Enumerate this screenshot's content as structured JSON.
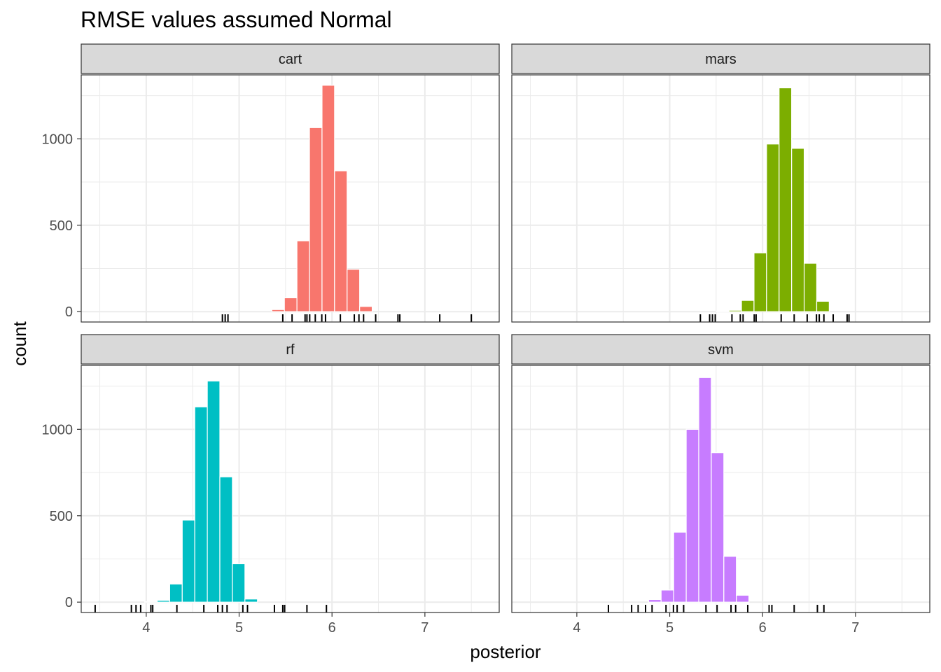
{
  "chart_data": {
    "type": "bar",
    "title": "RMSE values assumed Normal",
    "xlabel": "posterior",
    "ylabel": "count",
    "xlim": [
      3.3,
      7.8
    ],
    "ylim": [
      -60,
      1370
    ],
    "x_ticks": [
      4,
      5,
      6,
      7
    ],
    "y_ticks": [
      0,
      500,
      1000
    ],
    "bin_width": 0.135,
    "grid": true,
    "legend": "none",
    "panels": [
      {
        "name": "cart",
        "color": "#F8766D",
        "bins": [
          {
            "x": 5.42,
            "count": 12
          },
          {
            "x": 5.555,
            "count": 80
          },
          {
            "x": 5.69,
            "count": 410
          },
          {
            "x": 5.825,
            "count": 1065
          },
          {
            "x": 5.96,
            "count": 1310
          },
          {
            "x": 6.095,
            "count": 815
          },
          {
            "x": 6.23,
            "count": 245
          },
          {
            "x": 6.365,
            "count": 30
          }
        ],
        "rug": [
          4.82,
          4.85,
          4.88,
          5.47,
          5.57,
          5.71,
          5.73,
          5.76,
          5.82,
          5.89,
          5.93,
          6.09,
          6.24,
          6.29,
          6.34,
          6.47,
          6.71,
          6.73,
          7.16,
          7.5
        ]
      },
      {
        "name": "mars",
        "color": "#7CAE00",
        "bins": [
          {
            "x": 5.57,
            "count": 2
          },
          {
            "x": 5.705,
            "count": 8
          },
          {
            "x": 5.84,
            "count": 65
          },
          {
            "x": 5.975,
            "count": 340
          },
          {
            "x": 6.11,
            "count": 970
          },
          {
            "x": 6.245,
            "count": 1295
          },
          {
            "x": 6.38,
            "count": 945
          },
          {
            "x": 6.515,
            "count": 280
          },
          {
            "x": 6.65,
            "count": 60
          }
        ],
        "rug": [
          5.33,
          5.43,
          5.46,
          5.49,
          5.67,
          5.76,
          5.79,
          5.91,
          5.93,
          6.2,
          6.34,
          6.48,
          6.58,
          6.61,
          6.66,
          6.76,
          6.91,
          6.93
        ]
      },
      {
        "name": "rf",
        "color": "#00BFC4",
        "bins": [
          {
            "x": 4.05,
            "count": 2
          },
          {
            "x": 4.185,
            "count": 10
          },
          {
            "x": 4.32,
            "count": 105
          },
          {
            "x": 4.455,
            "count": 475
          },
          {
            "x": 4.59,
            "count": 1130
          },
          {
            "x": 4.725,
            "count": 1280
          },
          {
            "x": 4.86,
            "count": 725
          },
          {
            "x": 4.995,
            "count": 222
          },
          {
            "x": 5.13,
            "count": 18
          }
        ],
        "rug": [
          3.45,
          3.84,
          3.89,
          3.94,
          4.05,
          4.07,
          4.33,
          4.62,
          4.77,
          4.82,
          4.87,
          5.04,
          5.09,
          5.38,
          5.47,
          5.49,
          5.73,
          5.94
        ]
      },
      {
        "name": "svm",
        "color": "#C77CFF",
        "bins": [
          {
            "x": 4.84,
            "count": 15
          },
          {
            "x": 4.975,
            "count": 70
          },
          {
            "x": 5.11,
            "count": 405
          },
          {
            "x": 5.245,
            "count": 1000
          },
          {
            "x": 5.38,
            "count": 1300
          },
          {
            "x": 5.515,
            "count": 865
          },
          {
            "x": 5.65,
            "count": 265
          },
          {
            "x": 5.785,
            "count": 40
          }
        ],
        "rug": [
          4.34,
          4.59,
          4.66,
          4.74,
          4.81,
          4.96,
          5.04,
          5.08,
          5.15,
          5.39,
          5.51,
          5.66,
          5.71,
          5.84,
          6.07,
          6.1,
          6.34,
          6.59,
          6.66
        ]
      }
    ]
  }
}
